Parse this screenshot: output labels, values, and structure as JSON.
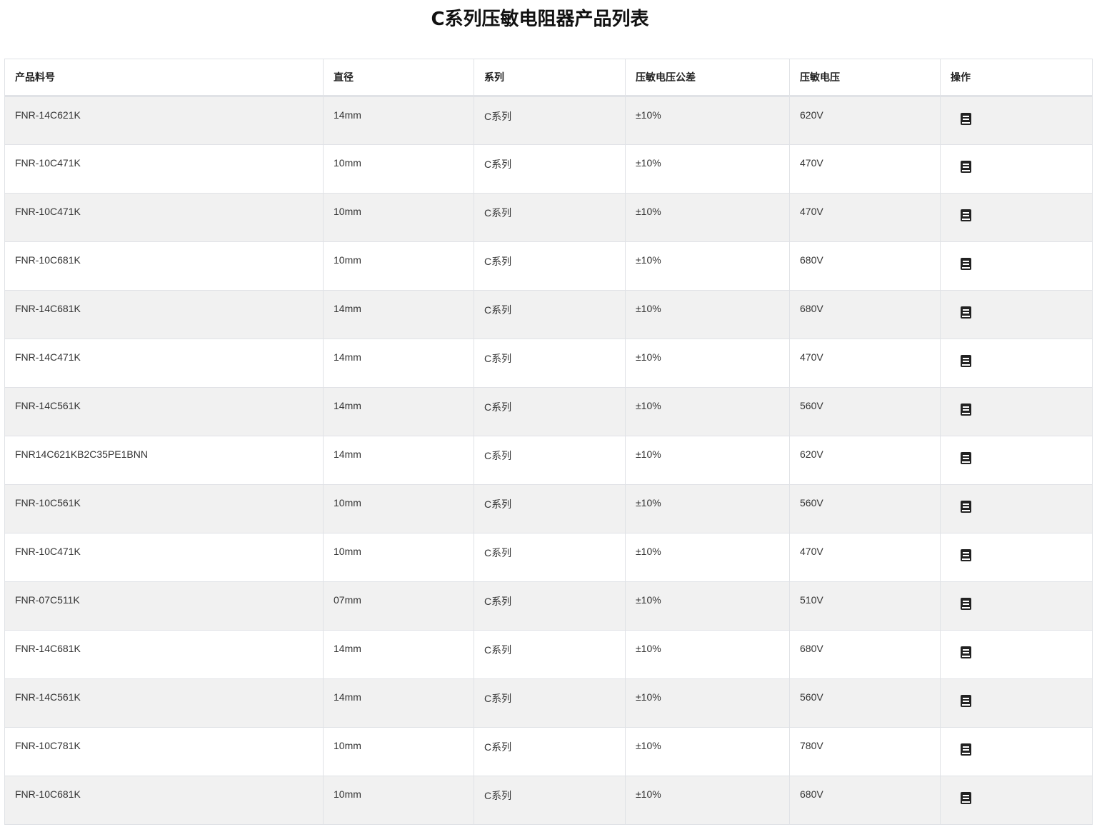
{
  "title": "C系列压敏电阻器产品列表",
  "headers": [
    "产品料号",
    "直径",
    "系列",
    "压敏电压公差",
    "压敏电压",
    "操作"
  ],
  "rows": [
    [
      "FNR-14C621K",
      "14mm",
      "C系列",
      "±10%",
      "620V"
    ],
    [
      "FNR-10C471K",
      "10mm",
      "C系列",
      "±10%",
      "470V"
    ],
    [
      "FNR-10C471K",
      "10mm",
      "C系列",
      "±10%",
      "470V"
    ],
    [
      "FNR-10C681K",
      "10mm",
      "C系列",
      "±10%",
      "680V"
    ],
    [
      "FNR-14C681K",
      "14mm",
      "C系列",
      "±10%",
      "680V"
    ],
    [
      "FNR-14C471K",
      "14mm",
      "C系列",
      "±10%",
      "470V"
    ],
    [
      "FNR-14C561K",
      "14mm",
      "C系列",
      "±10%",
      "560V"
    ],
    [
      "FNR14C621KB2C35PE1BNN",
      "14mm",
      "C系列",
      "±10%",
      "620V"
    ],
    [
      "FNR-10C561K",
      "10mm",
      "C系列",
      "±10%",
      "560V"
    ],
    [
      "FNR-10C471K",
      "10mm",
      "C系列",
      "±10%",
      "470V"
    ],
    [
      "FNR-07C511K",
      "07mm",
      "C系列",
      "±10%",
      "510V"
    ],
    [
      "FNR-14C681K",
      "14mm",
      "C系列",
      "±10%",
      "680V"
    ],
    [
      "FNR-14C561K",
      "14mm",
      "C系列",
      "±10%",
      "560V"
    ],
    [
      "FNR-10C781K",
      "10mm",
      "C系列",
      "±10%",
      "780V"
    ],
    [
      "FNR-10C681K",
      "10mm",
      "C系列",
      "±10%",
      "680V"
    ]
  ],
  "action_icon": "book-icon"
}
